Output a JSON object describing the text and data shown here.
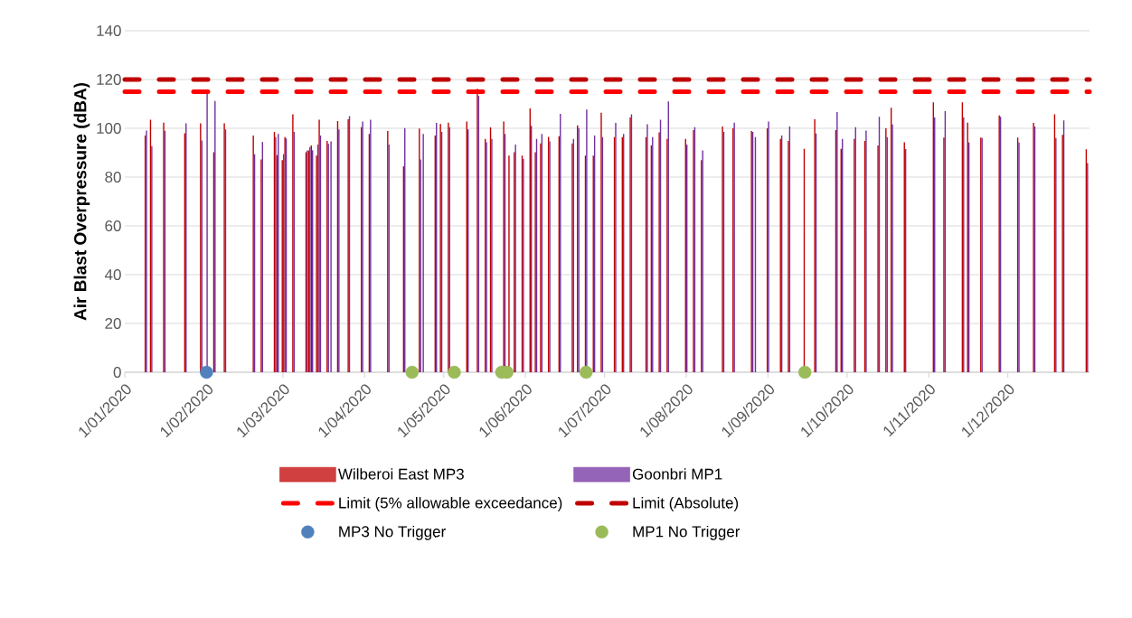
{
  "chart_data": {
    "type": "bar",
    "ylabel": "Air Blast Overpressure (dBA)",
    "x": [
      "2020-01-09",
      "2020-01-11",
      "2020-01-16",
      "2020-01-24",
      "2020-01-30",
      "2020-02-01",
      "2020-02-04",
      "2020-02-08",
      "2020-02-19",
      "2020-02-22",
      "2020-02-27",
      "2020-02-28",
      "2020-03-01",
      "2020-03-02",
      "2020-03-05",
      "2020-03-10",
      "2020-03-11",
      "2020-03-12",
      "2020-03-14",
      "2020-03-15",
      "2020-03-18",
      "2020-03-19",
      "2020-03-22",
      "2020-03-26",
      "2020-03-31",
      "2020-04-03",
      "2020-04-10",
      "2020-04-16",
      "2020-04-22",
      "2020-04-23",
      "2020-04-28",
      "2020-04-30",
      "2020-05-03",
      "2020-05-10",
      "2020-05-14",
      "2020-05-17",
      "2020-05-19",
      "2020-05-24",
      "2020-05-26",
      "2020-05-28",
      "2020-05-31",
      "2020-06-03",
      "2020-06-05",
      "2020-06-07",
      "2020-06-10",
      "2020-06-14",
      "2020-06-19",
      "2020-06-21",
      "2020-06-24",
      "2020-06-27",
      "2020-06-30",
      "2020-07-05",
      "2020-07-08",
      "2020-07-11",
      "2020-07-17",
      "2020-07-19",
      "2020-07-22",
      "2020-07-25",
      "2020-08-01",
      "2020-08-04",
      "2020-08-07",
      "2020-08-15",
      "2020-08-19",
      "2020-08-26",
      "2020-08-27",
      "2020-09-01",
      "2020-09-06",
      "2020-09-09",
      "2020-09-15",
      "2020-09-19",
      "2020-09-27",
      "2020-09-29",
      "2020-10-04",
      "2020-10-08",
      "2020-10-13",
      "2020-10-16",
      "2020-10-18",
      "2020-10-23",
      "2020-11-03",
      "2020-11-07",
      "2020-11-14",
      "2020-11-16",
      "2020-11-21",
      "2020-11-28",
      "2020-12-05",
      "2020-12-11",
      "2020-12-19",
      "2020-12-22",
      "2020-12-31"
    ],
    "series": [
      {
        "name": "Wilberoi East MP3",
        "color": "#c00000",
        "values": [
          97,
          103.5,
          102.3,
          98,
          102,
          null,
          90.2,
          102,
          97,
          87.2,
          98.5,
          89,
          86.9,
          96.4,
          105.7,
          90.2,
          90.9,
          93,
          88.8,
          103.5,
          94.8,
          null,
          103,
          103.7,
          100.5,
          97.7,
          98.9,
          84.4,
          99.9,
          null,
          97,
          101.8,
          102.3,
          102.8,
          116.2,
          95.6,
          100.4,
          102.8,
          88.8,
          90.2,
          88.8,
          108.1,
          90.2,
          93.8,
          96.5,
          96.8,
          93.8,
          101.2,
          88.8,
          88.8,
          106.4,
          96.4,
          96.4,
          104.4,
          96.4,
          93,
          98.3,
          95.6,
          95.6,
          99.3,
          86.9,
          100.7,
          100,
          98.9,
          null,
          100,
          95.6,
          94.8,
          91.6,
          103.7,
          99.3,
          91.6,
          95.6,
          94.8,
          93,
          100,
          108.4,
          94.3,
          110.6,
          96.2,
          110.6,
          102.3,
          96.2,
          105.3,
          96.2,
          102.2,
          105.7,
          97.3,
          91.4
        ]
      },
      {
        "name": "Goonbri MP1",
        "color": "#7030a0",
        "values": [
          99.1,
          92.7,
          99,
          102,
          95,
          115,
          111.2,
          99.5,
          89.4,
          94.4,
          96.4,
          97.7,
          89.4,
          95.8,
          98.5,
          90.9,
          92.3,
          91,
          93.3,
          97,
          93.6,
          94.6,
          99.5,
          105,
          102.8,
          103.5,
          93.3,
          100.1,
          87.2,
          97.7,
          102.2,
          98.5,
          100.5,
          99.5,
          113.3,
          94.3,
          95.6,
          97.7,
          null,
          93.3,
          87.4,
          101,
          95.6,
          97.7,
          94.6,
          105.9,
          95.6,
          100.1,
          107.7,
          97,
          96.4,
          102.2,
          97.7,
          105.7,
          101.7,
          96.4,
          103.5,
          111,
          93.3,
          100.5,
          90.9,
          98.5,
          102.3,
          98.5,
          96.4,
          102.8,
          97,
          100.7,
          null,
          97.9,
          106.7,
          95.6,
          100.5,
          99.1,
          104.7,
          96.4,
          101.6,
          91.5,
          104.4,
          107,
          104.4,
          94.2,
          96,
          104.7,
          94.2,
          100.7,
          96,
          103.2,
          85.7
        ]
      },
      {
        "name": "MP3 No Trigger",
        "type": "scatter",
        "marker": "circle",
        "color": "#4f81bd",
        "x": [
          "2020-02-01"
        ],
        "values": [
          0
        ]
      },
      {
        "name": "MP1 No Trigger",
        "type": "scatter",
        "marker": "circle",
        "color": "#9bbb59",
        "x": [
          "2020-04-19",
          "2020-05-05",
          "2020-05-23",
          "2020-05-25",
          "2020-06-24",
          "2020-09-15"
        ],
        "values": [
          0,
          0,
          0,
          0,
          0,
          0
        ]
      }
    ],
    "ref_lines": [
      {
        "axis": "y",
        "value": 115,
        "label": "Limit (5% allowable exceedance)",
        "color": "#ff0000",
        "line_style": "dashed"
      },
      {
        "axis": "y",
        "value": 120,
        "label": "Limit (Absolute)",
        "color": "#c00000",
        "line_style": "dashed"
      }
    ],
    "xlim": [
      "2020-01-01",
      "2021-01-01"
    ],
    "xticks": [
      {
        "value": "2020-01-01",
        "label": "1/01/2020"
      },
      {
        "value": "2020-02-01",
        "label": "1/02/2020"
      },
      {
        "value": "2020-03-01",
        "label": "1/03/2020"
      },
      {
        "value": "2020-04-01",
        "label": "1/04/2020"
      },
      {
        "value": "2020-05-01",
        "label": "1/05/2020"
      },
      {
        "value": "2020-06-01",
        "label": "1/06/2020"
      },
      {
        "value": "2020-07-01",
        "label": "1/07/2020"
      },
      {
        "value": "2020-08-01",
        "label": "1/08/2020"
      },
      {
        "value": "2020-09-01",
        "label": "1/09/2020"
      },
      {
        "value": "2020-10-01",
        "label": "1/10/2020"
      },
      {
        "value": "2020-11-01",
        "label": "1/11/2020"
      },
      {
        "value": "2020-12-01",
        "label": "1/12/2020"
      }
    ],
    "ylim": [
      0,
      140
    ],
    "yticks": [
      0,
      20,
      40,
      60,
      80,
      100,
      120,
      140
    ],
    "grid": "y",
    "legend": "bottom"
  }
}
